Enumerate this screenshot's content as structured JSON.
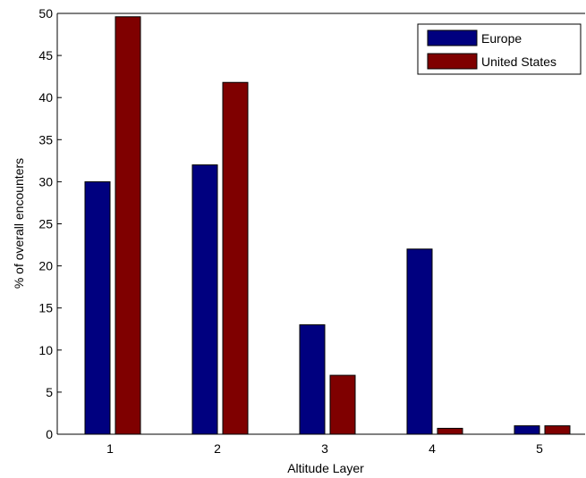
{
  "chart_data": {
    "type": "bar",
    "categories": [
      "1",
      "2",
      "3",
      "4",
      "5"
    ],
    "series": [
      {
        "name": "Europe",
        "values": [
          30,
          32,
          13,
          22,
          1
        ],
        "color": "#00007F"
      },
      {
        "name": "United States",
        "values": [
          49.6,
          41.8,
          7,
          0.7,
          1
        ],
        "color": "#7F0000"
      }
    ],
    "xlabel": "Altitude Layer",
    "ylabel": "% of overall encounters",
    "ylim": [
      0,
      50
    ],
    "yticks": [
      "0",
      "5",
      "10",
      "15",
      "20",
      "25",
      "30",
      "35",
      "40",
      "45",
      "50"
    ],
    "grid": false,
    "legend": "top-right"
  }
}
